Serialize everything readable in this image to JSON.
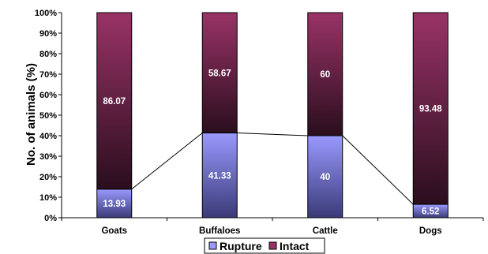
{
  "chart_data": {
    "type": "bar",
    "stacked": true,
    "percent": true,
    "categories": [
      "Goats",
      "Buffaloes",
      "Cattle",
      "Dogs"
    ],
    "series": [
      {
        "name": "Rupture",
        "values": [
          13.93,
          41.33,
          40,
          6.52
        ],
        "labels": [
          "13.93",
          "41.33",
          "40",
          "6.52"
        ],
        "color": "#9999ff",
        "color_dark": "#3a3a78"
      },
      {
        "name": "Intact",
        "values": [
          86.07,
          58.67,
          60,
          93.48
        ],
        "labels": [
          "86.07",
          "58.67",
          "60",
          "93.48"
        ],
        "color": "#993366",
        "color_dark": "#2a0e1e"
      }
    ],
    "ylabel": "No. of animals (%)",
    "xlabel": "",
    "ylim": [
      0,
      100
    ],
    "yticks": [
      "0%",
      "10%",
      "20%",
      "30%",
      "40%",
      "50%",
      "60%",
      "70%",
      "80%",
      "90%",
      "100%"
    ],
    "series_lines": true,
    "grid": false,
    "legend": "bottom-center"
  }
}
